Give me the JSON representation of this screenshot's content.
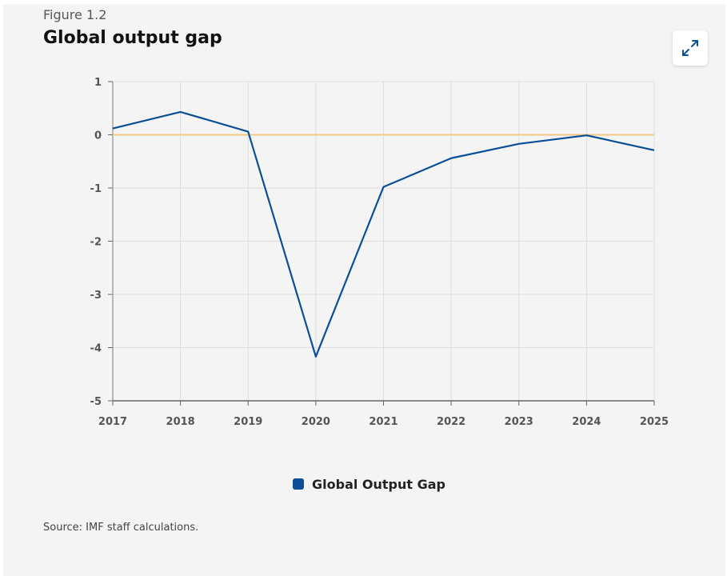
{
  "chart_data": {
    "type": "line",
    "label": "Figure 1.2",
    "title": "Global output gap",
    "x": [
      2017,
      2018,
      2019,
      2020,
      2021,
      2022,
      2023,
      2024,
      2025
    ],
    "series": [
      {
        "name": "Global Output Gap",
        "color": "#0b4f96",
        "values": [
          0.12,
          0.43,
          0.06,
          -4.17,
          -0.98,
          -0.44,
          -0.17,
          -0.01,
          -0.29
        ]
      }
    ],
    "xlim": [
      2017,
      2025
    ],
    "xticks": [
      2017,
      2018,
      2019,
      2020,
      2021,
      2022,
      2023,
      2024,
      2025
    ],
    "ylim": [
      -5,
      1
    ],
    "yticks": [
      1,
      0,
      -1,
      -2,
      -3,
      -4,
      -5
    ],
    "grid": true,
    "reference_line": {
      "value": 0,
      "color": "#f2c886"
    },
    "legend": "bottom",
    "source": "Source: IMF staff calculations."
  }
}
